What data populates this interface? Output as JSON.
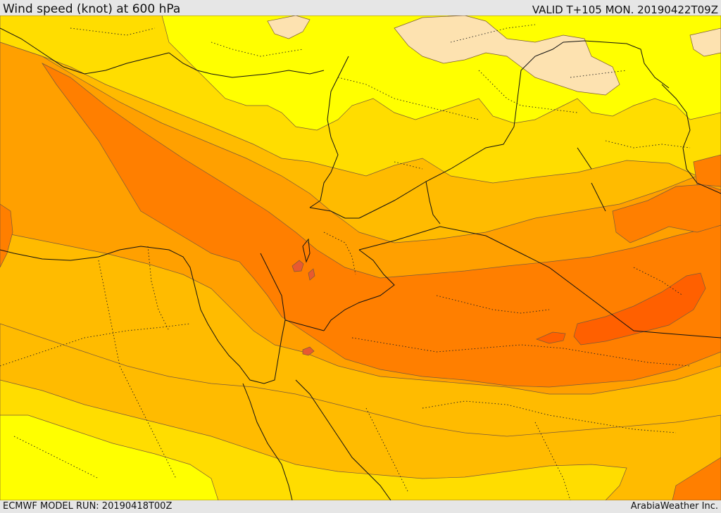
{
  "header": {
    "title": "Wind speed (knot) at 600 hPa",
    "valid": "VALID T+105 MON. 20190422T09Z"
  },
  "footer": {
    "model_run": "ECMWF MODEL RUN: 20190418T00Z",
    "credit": "ArabiaWeather Inc."
  },
  "map": {
    "fill_colors": {
      "calm": "#fde2b0",
      "light": "#ffff00",
      "moderate_low": "#ffdd00",
      "moderate": "#ffbb00",
      "moderate_high": "#ffa000",
      "strong": "#ff7f00",
      "very_strong": "#ff6000",
      "jet_core": "#e85a30"
    }
  }
}
